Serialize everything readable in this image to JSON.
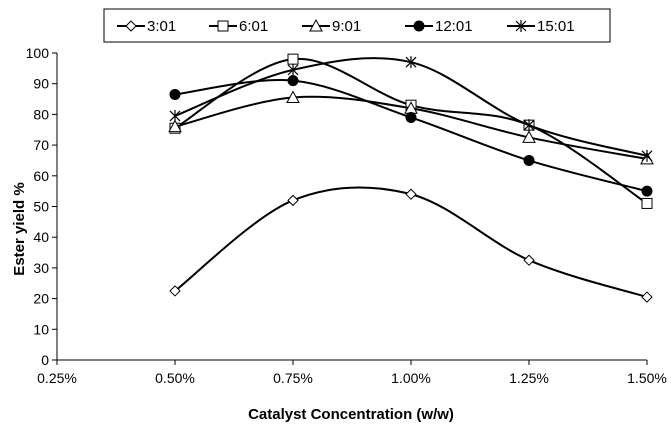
{
  "chart_data": {
    "type": "line",
    "xlabel": "Catalyst Concentration (w/w)",
    "ylabel": "Ester yield %",
    "x_ticks": [
      "0.25%",
      "0.50%",
      "0.75%",
      "1.00%",
      "1.25%",
      "1.50%"
    ],
    "x": [
      0.5,
      0.75,
      1.0,
      1.25,
      1.5
    ],
    "xlim": [
      0.25,
      1.5
    ],
    "ylim": [
      0,
      100
    ],
    "y_ticks": [
      0,
      10,
      20,
      30,
      40,
      50,
      60,
      70,
      80,
      90,
      100
    ],
    "grid": false,
    "smooth": true,
    "legend_position": "top",
    "series": [
      {
        "name": "3:01",
        "marker": "diamond-open",
        "values": [
          22.5,
          52,
          54,
          32.5,
          20.5
        ]
      },
      {
        "name": "6:01",
        "marker": "square-open",
        "values": [
          75.5,
          98,
          83,
          76.5,
          51
        ]
      },
      {
        "name": "9:01",
        "marker": "triangle-open",
        "values": [
          76,
          85.5,
          82,
          72.5,
          65.5
        ]
      },
      {
        "name": "12:01",
        "marker": "circle-filled",
        "values": [
          86.5,
          91,
          79,
          65,
          55
        ]
      },
      {
        "name": "15:01",
        "marker": "star",
        "values": [
          79.5,
          94.5,
          97,
          76.5,
          66.5
        ]
      }
    ]
  }
}
